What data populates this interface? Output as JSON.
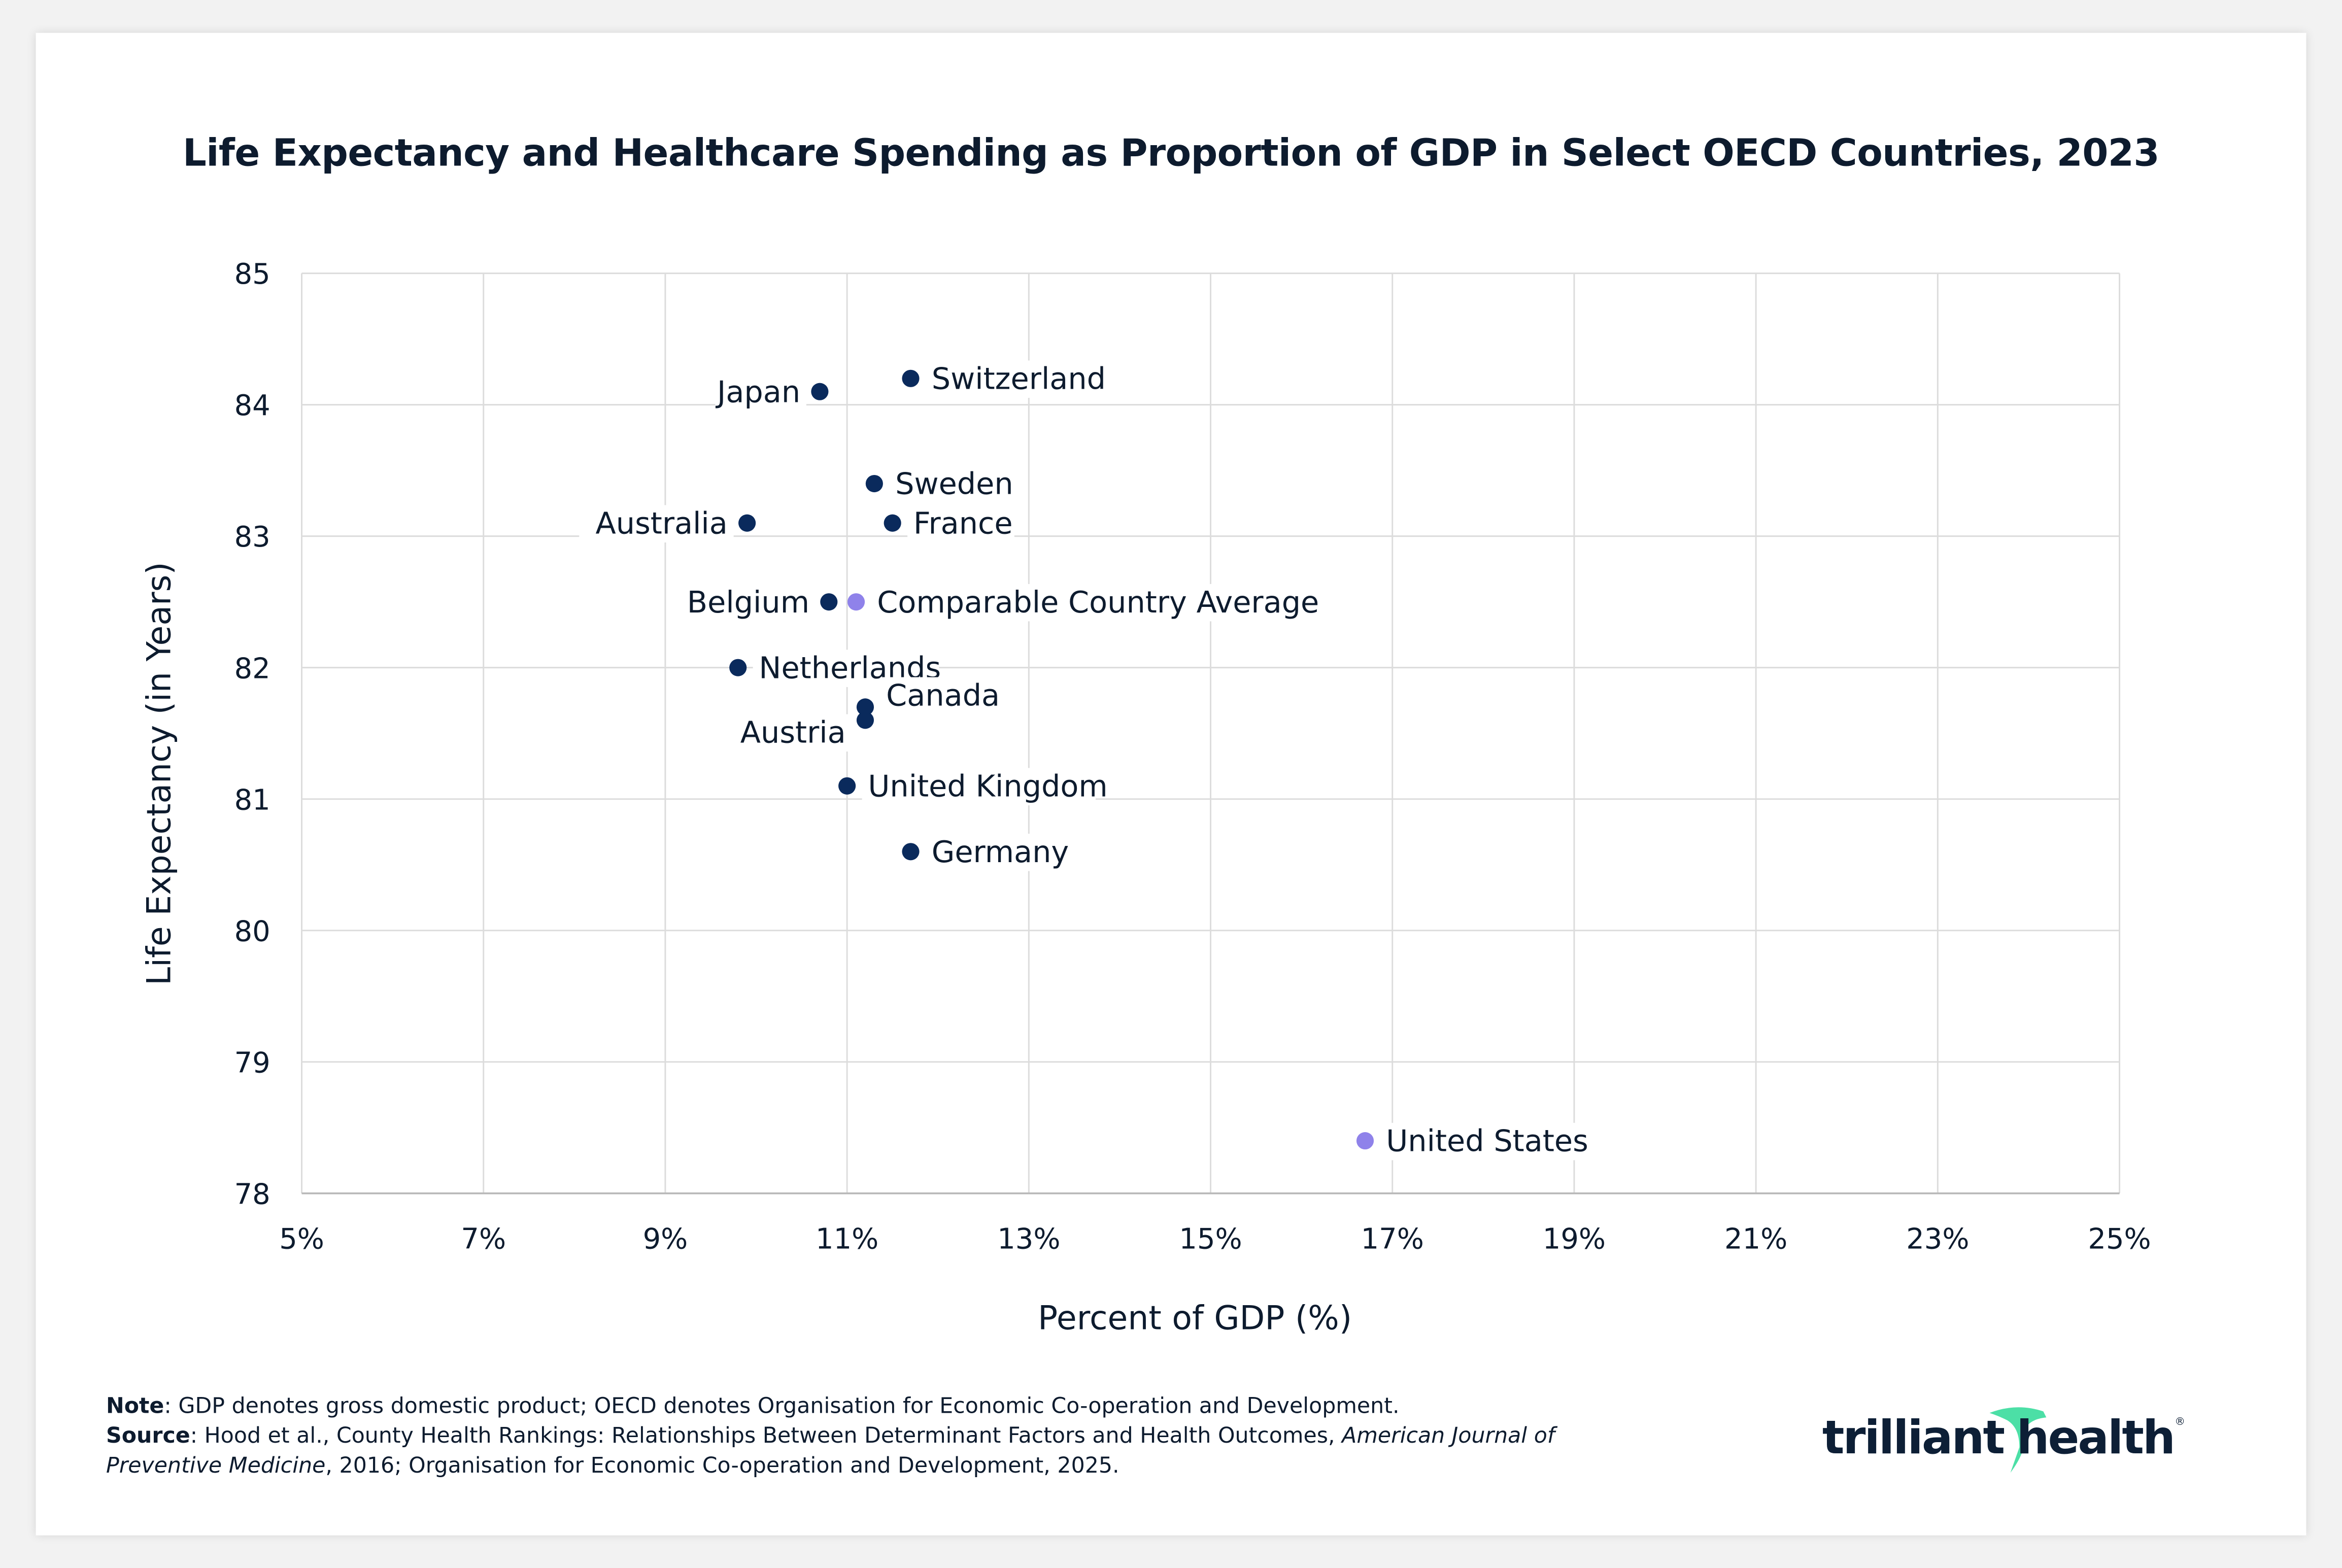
{
  "chart_data": {
    "type": "scatter",
    "title": "Life Expectancy and Healthcare Spending as Proportion of GDP in Select OECD Countries, 2023",
    "xlabel": "Percent of GDP (%)",
    "ylabel": "Life Expectancy (in Years)",
    "xlim": [
      5,
      25
    ],
    "ylim": [
      78,
      85
    ],
    "x_ticks": [
      "5%",
      "7%",
      "9%",
      "11%",
      "13%",
      "15%",
      "17%",
      "19%",
      "21%",
      "23%",
      "25%"
    ],
    "y_ticks": [
      "78",
      "79",
      "80",
      "81",
      "82",
      "83",
      "84",
      "85"
    ],
    "grid": true,
    "points": [
      {
        "label": "Switzerland",
        "x": 11.7,
        "y": 84.2,
        "highlight": false
      },
      {
        "label": "Japan",
        "x": 10.7,
        "y": 84.1,
        "highlight": false
      },
      {
        "label": "Sweden",
        "x": 11.3,
        "y": 83.4,
        "highlight": false
      },
      {
        "label": "Australia",
        "x": 9.9,
        "y": 83.1,
        "highlight": false
      },
      {
        "label": "France",
        "x": 11.5,
        "y": 83.1,
        "highlight": false
      },
      {
        "label": "Belgium",
        "x": 10.8,
        "y": 82.5,
        "highlight": false
      },
      {
        "label": "Comparable Country Average",
        "x": 11.1,
        "y": 82.5,
        "highlight": true
      },
      {
        "label": "Netherlands",
        "x": 9.8,
        "y": 82.0,
        "highlight": false
      },
      {
        "label": "Canada",
        "x": 11.2,
        "y": 81.7,
        "highlight": false
      },
      {
        "label": "Austria",
        "x": 11.2,
        "y": 81.6,
        "highlight": false
      },
      {
        "label": "United Kingdom",
        "x": 11.0,
        "y": 81.1,
        "highlight": false
      },
      {
        "label": "Germany",
        "x": 11.7,
        "y": 80.6,
        "highlight": false
      },
      {
        "label": "United States",
        "x": 16.7,
        "y": 78.4,
        "highlight": true
      }
    ],
    "colors": {
      "point": "#0a2a5c",
      "highlight_point": "#8f82ea",
      "highlight_text": "#4a35e0",
      "text": "#0d1b2e",
      "grid": "#dcdcdc"
    }
  },
  "footer": {
    "note_label": "Note",
    "note_text": ": GDP denotes gross domestic product; OECD denotes Organisation for Economic Co-operation and Development.",
    "source_label": "Source",
    "source_text": ": Hood et al., County Health Rankings: Relationships Between Determinant Factors and Health Outcomes, ",
    "source_journal": "American Journal of Preventive Medicine",
    "source_rest": ", 2016; Organisation for Economic Co-operation and Development, 2025."
  },
  "logo": {
    "text_left": "trilliant",
    "text_right": "health",
    "accent": "#4cdfa6",
    "color": "#0d1f36"
  }
}
